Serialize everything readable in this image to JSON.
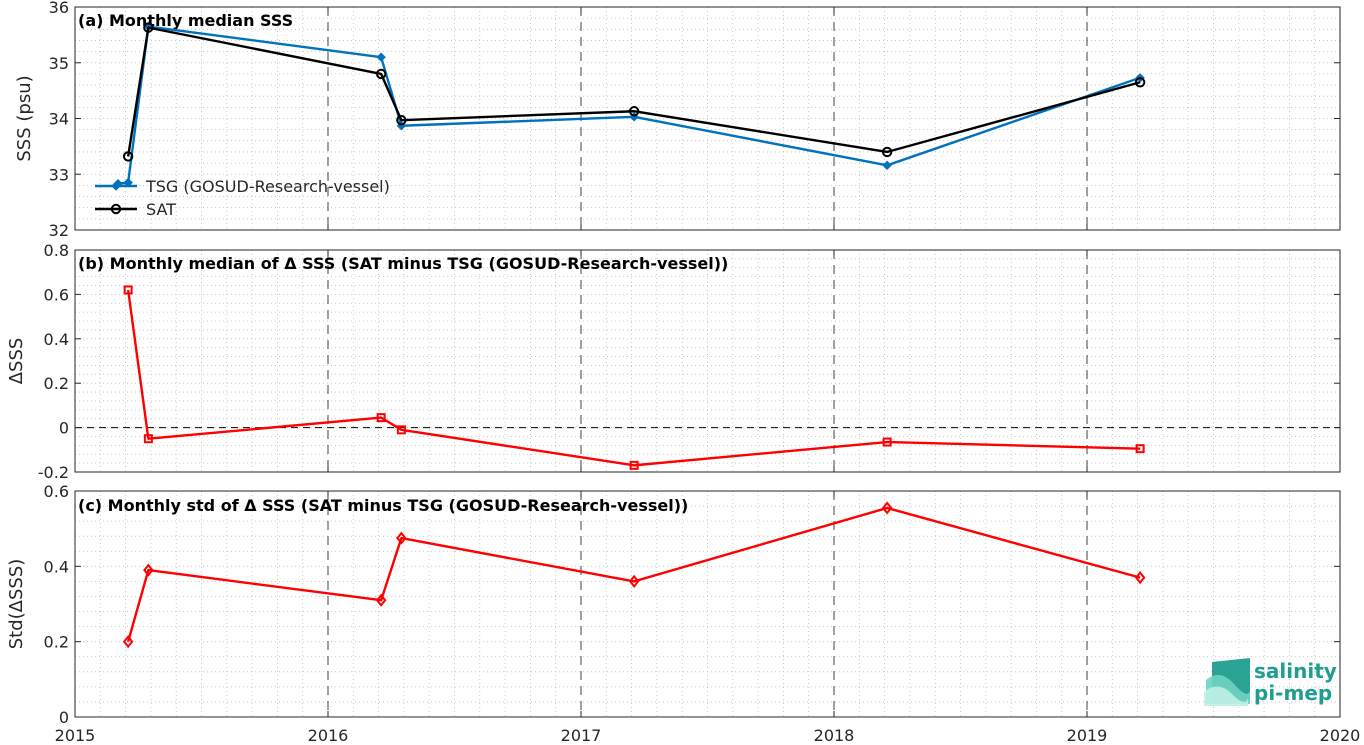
{
  "chart_data": [
    {
      "type": "line",
      "title": "(a) Monthly median SSS",
      "ylabel": "SSS (psu)",
      "ylim": [
        32,
        36
      ],
      "yticks": [
        32,
        33,
        34,
        35,
        36
      ],
      "xlim": [
        2015,
        2020
      ],
      "xticks": [
        2015,
        2016,
        2017,
        2018,
        2019,
        2020
      ],
      "grid": "minor-dotted",
      "legend_placement": "bottom-left",
      "series": [
        {
          "name": "TSG (GOSUD-Research-vessel)",
          "color": "#0072BD",
          "marker": "diamond",
          "x": [
            2015.17,
            2015.21,
            2015.29,
            2016.21,
            2016.29,
            2017.21,
            2018.21,
            2019.21
          ],
          "y": [
            32.83,
            32.85,
            35.65,
            35.1,
            33.87,
            34.03,
            33.16,
            34.73
          ]
        },
        {
          "name": "SAT",
          "color": "#000000",
          "marker": "circle",
          "x": [
            2015.21,
            2015.29,
            2016.21,
            2016.29,
            2017.21,
            2018.21,
            2019.21
          ],
          "y": [
            33.32,
            35.63,
            34.8,
            33.97,
            34.13,
            33.4,
            34.65
          ]
        }
      ]
    },
    {
      "type": "line",
      "title": "(b) Monthly median of Δ SSS (SAT minus TSG (GOSUD-Research-vessel))",
      "ylabel": "ΔSSS",
      "ylim": [
        -0.2,
        0.8
      ],
      "yticks": [
        -0.2,
        0,
        0.2,
        0.4,
        0.6,
        0.8
      ],
      "ytick_labels": [
        "-0.2",
        "0",
        "0.2",
        "0.4",
        "0.6",
        "0.8"
      ],
      "xlim": [
        2015,
        2020
      ],
      "grid": "minor-dotted",
      "zero_line": true,
      "series": [
        {
          "color": "#FF0000",
          "marker": "square",
          "x": [
            2015.21,
            2015.29,
            2016.21,
            2016.29,
            2017.21,
            2018.21,
            2019.21
          ],
          "y": [
            0.62,
            -0.05,
            0.045,
            -0.01,
            -0.17,
            -0.065,
            -0.095
          ]
        }
      ]
    },
    {
      "type": "line",
      "title": "(c) Monthly std of Δ SSS (SAT minus TSG (GOSUD-Research-vessel))",
      "ylabel": "Std(ΔSSS)",
      "ylim": [
        0,
        0.6
      ],
      "yticks": [
        0,
        0.2,
        0.4,
        0.6
      ],
      "ytick_labels": [
        "0",
        "0.2",
        "0.4",
        "0.6"
      ],
      "xlim": [
        2015,
        2020
      ],
      "xticks": [
        2015,
        2016,
        2017,
        2018,
        2019,
        2020
      ],
      "xtick_labels": [
        "2015",
        "2016",
        "2017",
        "2018",
        "2019",
        "2020"
      ],
      "grid": "minor-dotted",
      "series": [
        {
          "color": "#FF0000",
          "marker": "diamond-open",
          "x": [
            2015.21,
            2015.29,
            2016.21,
            2016.29,
            2017.21,
            2018.21,
            2019.21
          ],
          "y": [
            0.2,
            0.39,
            0.31,
            0.475,
            0.36,
            0.555,
            0.37
          ]
        }
      ]
    }
  ],
  "logo": {
    "line1": "salinity",
    "line2": "pi-mep",
    "color": "#1f9e8f"
  },
  "colors": {
    "tsg": "#0072BD",
    "sat": "#000000",
    "delta": "#FF0000",
    "major_grid": "#404040",
    "minor_grid": "#bdbdbd"
  }
}
